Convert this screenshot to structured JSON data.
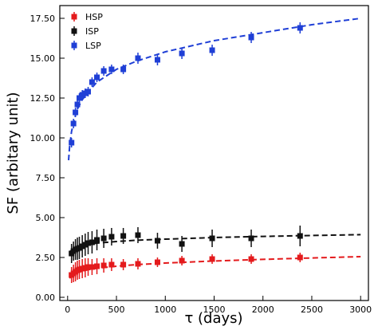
{
  "chart_data": {
    "type": "scatter",
    "xlabel": "τ (days)",
    "ylabel": "SF (arbitary unit)",
    "xlim": [
      -80,
      3080
    ],
    "ylim": [
      -0.2,
      18.3
    ],
    "xticks": [
      0,
      500,
      1000,
      1500,
      2000,
      2500,
      3000
    ],
    "xtick_labels": [
      "0",
      "500",
      "1000",
      "1500",
      "2000",
      "2500",
      "3000"
    ],
    "yticks": [
      0.0,
      2.5,
      5.0,
      7.5,
      10.0,
      12.5,
      15.0,
      17.5
    ],
    "ytick_labels": [
      "0.00",
      "2.50",
      "5.00",
      "7.50",
      "10.00",
      "12.50",
      "15.00",
      "17.50"
    ],
    "grid": false,
    "legend": "top-left",
    "series": [
      {
        "name": "HSP",
        "color": "#e41a1c",
        "x": [
          40,
          60,
          80,
          100,
          120,
          150,
          180,
          210,
          250,
          300,
          370,
          450,
          570,
          720,
          920,
          1170,
          1480,
          1880,
          2380
        ],
        "y": [
          1.4,
          1.5,
          1.6,
          1.7,
          1.75,
          1.8,
          1.85,
          1.9,
          1.9,
          1.95,
          2.0,
          2.05,
          2.05,
          2.1,
          2.2,
          2.3,
          2.4,
          2.4,
          2.5
        ],
        "yerr": [
          0.5,
          0.55,
          0.6,
          0.6,
          0.6,
          0.6,
          0.6,
          0.55,
          0.5,
          0.5,
          0.45,
          0.4,
          0.35,
          0.35,
          0.3,
          0.3,
          0.3,
          0.3,
          0.3
        ],
        "fit": {
          "x": [
            20,
            50,
            100,
            200,
            300,
            500,
            700,
            1000,
            1500,
            2000,
            2500,
            3000
          ],
          "y": [
            1.2,
            1.38,
            1.55,
            1.72,
            1.82,
            1.95,
            2.05,
            2.15,
            2.28,
            2.38,
            2.47,
            2.55
          ]
        }
      },
      {
        "name": "ISP",
        "color": "#111111",
        "x": [
          40,
          60,
          80,
          100,
          120,
          150,
          180,
          210,
          250,
          300,
          370,
          450,
          570,
          720,
          920,
          1170,
          1480,
          1880,
          2380
        ],
        "y": [
          2.75,
          2.9,
          3.0,
          3.05,
          3.1,
          3.2,
          3.3,
          3.4,
          3.45,
          3.6,
          3.7,
          3.8,
          3.85,
          3.9,
          3.55,
          3.35,
          3.7,
          3.7,
          3.85
        ],
        "yerr": [
          0.6,
          0.6,
          0.65,
          0.7,
          0.7,
          0.7,
          0.7,
          0.7,
          0.7,
          0.65,
          0.6,
          0.55,
          0.5,
          0.5,
          0.5,
          0.5,
          0.55,
          0.55,
          0.65
        ],
        "fit": {
          "x": [
            20,
            50,
            100,
            200,
            300,
            500,
            700,
            1000,
            1500,
            2000,
            2500,
            3000
          ],
          "y": [
            2.85,
            3.0,
            3.15,
            3.3,
            3.4,
            3.5,
            3.58,
            3.65,
            3.75,
            3.82,
            3.88,
            3.93
          ]
        }
      },
      {
        "name": "LSP",
        "color": "#1f3fd6",
        "x": [
          40,
          60,
          80,
          100,
          120,
          150,
          180,
          210,
          250,
          300,
          370,
          450,
          570,
          720,
          920,
          1170,
          1480,
          1880,
          2380
        ],
        "y": [
          9.7,
          10.9,
          11.6,
          12.1,
          12.5,
          12.7,
          12.8,
          12.9,
          13.5,
          13.8,
          14.2,
          14.3,
          14.3,
          15.0,
          14.9,
          15.3,
          15.5,
          16.3,
          16.9
        ],
        "yerr": [
          0.3,
          0.3,
          0.3,
          0.3,
          0.3,
          0.3,
          0.3,
          0.3,
          0.3,
          0.3,
          0.3,
          0.3,
          0.3,
          0.35,
          0.35,
          0.35,
          0.35,
          0.35,
          0.35
        ],
        "fit": {
          "x": [
            10,
            20,
            40,
            70,
            100,
            150,
            200,
            300,
            400,
            500,
            700,
            1000,
            1500,
            2000,
            2500,
            3000
          ],
          "y": [
            8.6,
            9.4,
            10.4,
            11.2,
            11.8,
            12.4,
            12.8,
            13.5,
            13.9,
            14.3,
            14.8,
            15.4,
            16.1,
            16.6,
            17.1,
            17.5
          ]
        }
      }
    ]
  }
}
